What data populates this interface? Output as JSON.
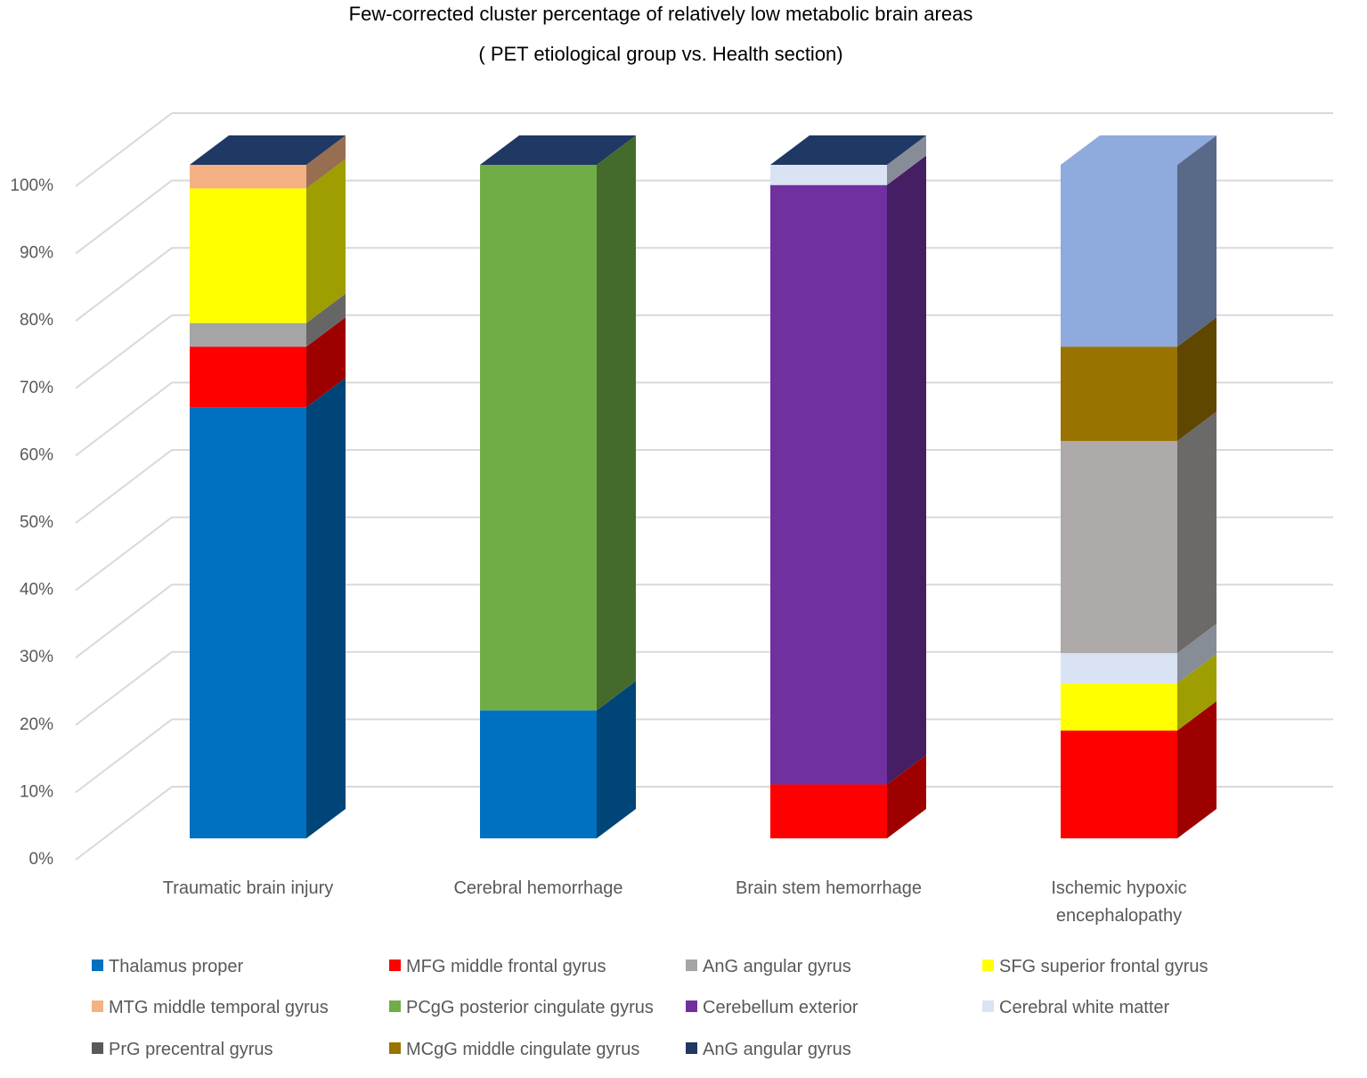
{
  "chart_data": {
    "type": "bar3d-stacked",
    "title": "Few-corrected cluster percentage of relatively low metabolic brain areas",
    "subtitle": "( PET etiological group vs. Health section)",
    "categories": [
      "Traumatic brain injury",
      "Cerebral hemorrhage",
      "Brain stem hemorrhage",
      "Ischemic hypoxic encephalopathy"
    ],
    "ylim": [
      0,
      100
    ],
    "yticks": [
      {
        "value": 0,
        "label": "0%"
      },
      {
        "value": 10,
        "label": "10%"
      },
      {
        "value": 20,
        "label": "20%"
      },
      {
        "value": 30,
        "label": "30%"
      },
      {
        "value": 40,
        "label": "40%"
      },
      {
        "value": 50,
        "label": "50%"
      },
      {
        "value": 60,
        "label": "60%"
      },
      {
        "value": 70,
        "label": "70%"
      },
      {
        "value": 80,
        "label": "80%"
      },
      {
        "value": 90,
        "label": "90%"
      },
      {
        "value": 100,
        "label": "100%"
      }
    ],
    "grid": true,
    "series": [
      {
        "name": "Thalamus proper",
        "color": "#0070c0",
        "values": [
          64,
          19,
          0,
          0
        ]
      },
      {
        "name": "MFG middle frontal gyrus",
        "color": "#ff0000",
        "values": [
          9,
          0,
          8,
          16
        ]
      },
      {
        "name": "AnG angular gyrus",
        "color": "#a5a5a5",
        "values": [
          3.5,
          0,
          0,
          0
        ]
      },
      {
        "name": "SFG superior frontal gyrus",
        "color": "#ffff00",
        "values": [
          20,
          0,
          0,
          7
        ]
      },
      {
        "name": "MTG middle temporal gyrus",
        "color": "#f4b183",
        "values": [
          3.5,
          0,
          0,
          0
        ]
      },
      {
        "name": "PCgG posterior cingulate gyrus",
        "color": "#70ad47",
        "values": [
          0,
          81,
          0,
          0
        ]
      },
      {
        "name": "Cerebellum exterior",
        "color": "#7030a0",
        "values": [
          0,
          0,
          89,
          0
        ]
      },
      {
        "name": "Cerebral white matter",
        "color": "#dae3f3",
        "values": [
          0,
          0,
          3,
          4.5
        ]
      },
      {
        "name": "PrG precentral gyrus",
        "color": "#595959",
        "point_colors": [
          "#595959",
          "#595959",
          "#595959",
          "#aeaaaa"
        ],
        "values": [
          0,
          0,
          0,
          31.5
        ]
      },
      {
        "name": "MCgG middle cingulate gyrus",
        "color": "#997300",
        "values": [
          0,
          0,
          0,
          14
        ]
      },
      {
        "name": "AnG angular gyrus",
        "color": "#1f3864",
        "point_colors": [
          "#1f3864",
          "#1f3864",
          "#1f3864",
          "#8faadc"
        ],
        "values": [
          0,
          0,
          0,
          27
        ]
      }
    ]
  }
}
